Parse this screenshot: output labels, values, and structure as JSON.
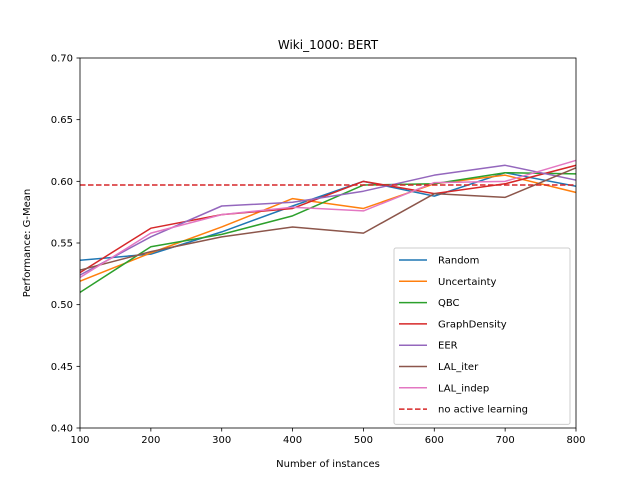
{
  "chart_data": {
    "type": "line",
    "title": "Wiki_1000: BERT",
    "xlabel": "Number of instances",
    "ylabel": "Performance: G-Mean",
    "xlim": [
      100,
      800
    ],
    "ylim": [
      0.4,
      0.7
    ],
    "xticks": [
      100,
      200,
      300,
      400,
      500,
      600,
      700,
      800
    ],
    "yticks": [
      0.4,
      0.45,
      0.5,
      0.55,
      0.6,
      0.65,
      0.7
    ],
    "ytick_labels": [
      "0.40",
      "0.45",
      "0.50",
      "0.55",
      "0.60",
      "0.65",
      "0.70"
    ],
    "legend_position": "lower-right",
    "x": [
      100,
      200,
      300,
      400,
      500,
      600,
      700,
      800
    ],
    "series": [
      {
        "name": "Random",
        "color": "#1f77b4",
        "dash": "solid",
        "values": [
          0.536,
          0.541,
          0.559,
          0.58,
          0.6,
          0.588,
          0.607,
          0.596
        ]
      },
      {
        "name": "Uncertainty",
        "color": "#ff7f0e",
        "dash": "solid",
        "values": [
          0.519,
          0.542,
          0.563,
          0.586,
          0.578,
          0.598,
          0.605,
          0.591
        ]
      },
      {
        "name": "QBC",
        "color": "#2ca02c",
        "dash": "solid",
        "values": [
          0.51,
          0.547,
          0.557,
          0.572,
          0.597,
          0.598,
          0.607,
          0.606
        ]
      },
      {
        "name": "GraphDensity",
        "color": "#d62728",
        "dash": "solid",
        "values": [
          0.526,
          0.562,
          0.573,
          0.578,
          0.6,
          0.59,
          0.598,
          0.613
        ]
      },
      {
        "name": "EER",
        "color": "#9467bd",
        "dash": "solid",
        "values": [
          0.524,
          0.555,
          0.58,
          0.583,
          0.592,
          0.605,
          0.613,
          0.601
        ]
      },
      {
        "name": "LAL_iter",
        "color": "#8c564b",
        "dash": "solid",
        "values": [
          0.528,
          0.543,
          0.555,
          0.563,
          0.558,
          0.59,
          0.587,
          0.611
        ]
      },
      {
        "name": "LAL_indep",
        "color": "#e377c2",
        "dash": "solid",
        "values": [
          0.522,
          0.558,
          0.573,
          0.579,
          0.576,
          0.599,
          0.6,
          0.617
        ]
      },
      {
        "name": "no active learning",
        "color": "#d62728",
        "dash": "dashed",
        "values": [
          0.597,
          0.597,
          0.597,
          0.597,
          0.597,
          0.597,
          0.597,
          0.597
        ]
      }
    ]
  }
}
